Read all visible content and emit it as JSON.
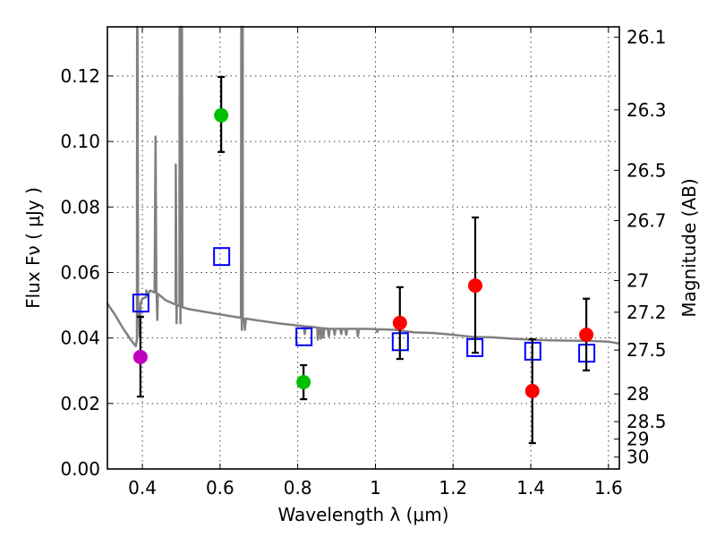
{
  "chart_data": {
    "type": "scatter",
    "title": "",
    "xlabel": "Wavelength  λ (μm)",
    "ylabel": "Flux  Fν  ( μJy )",
    "y2label": "Magnitude (AB)",
    "xlim": [
      0.31,
      1.628
    ],
    "ylim": [
      0.0,
      0.135
    ],
    "grid": true,
    "x_ticks": [
      0.4,
      0.6,
      0.8,
      1.0,
      1.2,
      1.4,
      1.6
    ],
    "x_tick_labels": [
      "0.4",
      "0.6",
      "0.8",
      "1",
      "1.2",
      "1.4",
      "1.6"
    ],
    "y_ticks": [
      0.0,
      0.02,
      0.04,
      0.06,
      0.08,
      0.1,
      0.12
    ],
    "y_tick_labels": [
      "0.00",
      "0.02",
      "0.04",
      "0.06",
      "0.08",
      "0.10",
      "0.12"
    ],
    "y2_ticks_mag": [
      26.1,
      26.3,
      26.5,
      26.7,
      27,
      27.2,
      27.5,
      28,
      28.5,
      29,
      30
    ],
    "y2_tick_labels": [
      "26.1",
      "26.3",
      "26.5",
      "26.7",
      "27",
      "27.2",
      "27.5",
      "28",
      "28.5",
      "29",
      "30"
    ],
    "mag_zero_point": 23.9,
    "series": [
      {
        "name": "observed-magenta",
        "color": "#bf00bf",
        "points": [
          {
            "x": 0.395,
            "y": 0.0342,
            "err_low": 0.0221,
            "err_high": 0.0465
          }
        ]
      },
      {
        "name": "observed-green",
        "color": "#00bf00",
        "points": [
          {
            "x": 0.603,
            "y": 0.108,
            "err_low": 0.0968,
            "err_high": 0.1197
          },
          {
            "x": 0.815,
            "y": 0.0265,
            "err_low": 0.0213,
            "err_high": 0.0317
          }
        ]
      },
      {
        "name": "observed-red",
        "color": "#ff0000",
        "points": [
          {
            "x": 1.063,
            "y": 0.0446,
            "err_low": 0.0336,
            "err_high": 0.0555
          },
          {
            "x": 1.257,
            "y": 0.056,
            "err_low": 0.0355,
            "err_high": 0.0768
          },
          {
            "x": 1.404,
            "y": 0.0238,
            "err_low": 0.0079,
            "err_high": 0.0396
          },
          {
            "x": 1.543,
            "y": 0.041,
            "err_low": 0.0301,
            "err_high": 0.052
          }
        ]
      },
      {
        "name": "model-photometry",
        "color": "#0000ff",
        "marker": "open-square",
        "points": [
          {
            "x": 0.395,
            "y": 0.0508
          },
          {
            "x": 0.603,
            "y": 0.065
          },
          {
            "x": 0.815,
            "y": 0.0405
          },
          {
            "x": 1.063,
            "y": 0.039
          },
          {
            "x": 1.255,
            "y": 0.0372
          },
          {
            "x": 1.404,
            "y": 0.0361
          },
          {
            "x": 1.543,
            "y": 0.0355
          }
        ]
      }
    ],
    "spectrum": {
      "name": "model-spectrum",
      "color": "#808080",
      "continuum": [
        [
          0.31,
          0.0505
        ],
        [
          0.33,
          0.047
        ],
        [
          0.35,
          0.043
        ],
        [
          0.37,
          0.0395
        ],
        [
          0.383,
          0.0375
        ],
        [
          0.386,
          0.0395
        ],
        [
          0.39,
          0.049
        ],
        [
          0.4,
          0.052
        ],
        [
          0.41,
          0.0525
        ],
        [
          0.42,
          0.0545
        ],
        [
          0.44,
          0.0535
        ],
        [
          0.46,
          0.0515
        ],
        [
          0.48,
          0.0505
        ],
        [
          0.5,
          0.0495
        ],
        [
          0.52,
          0.0488
        ],
        [
          0.55,
          0.0482
        ],
        [
          0.6,
          0.0472
        ],
        [
          0.65,
          0.0462
        ],
        [
          0.7,
          0.0453
        ],
        [
          0.75,
          0.0445
        ],
        [
          0.8,
          0.0438
        ],
        [
          0.85,
          0.0432
        ],
        [
          0.88,
          0.0428
        ],
        [
          0.92,
          0.0428
        ],
        [
          0.96,
          0.0428
        ],
        [
          1.0,
          0.0427
        ],
        [
          1.05,
          0.0425
        ],
        [
          1.1,
          0.0417
        ],
        [
          1.15,
          0.0415
        ],
        [
          1.2,
          0.041
        ],
        [
          1.25,
          0.0403
        ],
        [
          1.3,
          0.0402
        ],
        [
          1.35,
          0.0398
        ],
        [
          1.4,
          0.0395
        ],
        [
          1.45,
          0.0393
        ],
        [
          1.5,
          0.0392
        ],
        [
          1.55,
          0.0391
        ],
        [
          1.6,
          0.0389
        ],
        [
          1.628,
          0.0383
        ]
      ],
      "emission_lines": [
        {
          "x": 0.3865,
          "peak": 0.135
        },
        {
          "x": 0.3875,
          "peak": 0.135
        },
        {
          "x": 0.4101,
          "peak": 0.0545
        },
        {
          "x": 0.434,
          "peak": 0.1015
        },
        {
          "x": 0.4861,
          "peak": 0.093
        },
        {
          "x": 0.4959,
          "peak": 0.135
        },
        {
          "x": 0.5007,
          "peak": 0.135
        },
        {
          "x": 0.502,
          "peak": 0.135
        },
        {
          "x": 0.6548,
          "peak": 0.135
        },
        {
          "x": 0.6563,
          "peak": 0.135
        },
        {
          "x": 0.6583,
          "peak": 0.135
        }
      ],
      "absorption_dips": [
        {
          "x": 0.393,
          "depth": 0.0405
        },
        {
          "x": 0.4385,
          "depth": 0.0455
        },
        {
          "x": 0.488,
          "depth": 0.0445
        },
        {
          "x": 0.498,
          "depth": 0.0445
        },
        {
          "x": 0.656,
          "depth": 0.0425
        },
        {
          "x": 0.664,
          "depth": 0.0425
        },
        {
          "x": 0.818,
          "depth": 0.0412
        },
        {
          "x": 0.852,
          "depth": 0.0395
        },
        {
          "x": 0.86,
          "depth": 0.0398
        },
        {
          "x": 0.866,
          "depth": 0.0402
        },
        {
          "x": 0.88,
          "depth": 0.0405
        },
        {
          "x": 0.895,
          "depth": 0.041
        },
        {
          "x": 0.912,
          "depth": 0.0412
        },
        {
          "x": 0.925,
          "depth": 0.041
        },
        {
          "x": 0.955,
          "depth": 0.0405
        },
        {
          "x": 1.005,
          "depth": 0.0418
        }
      ]
    }
  }
}
